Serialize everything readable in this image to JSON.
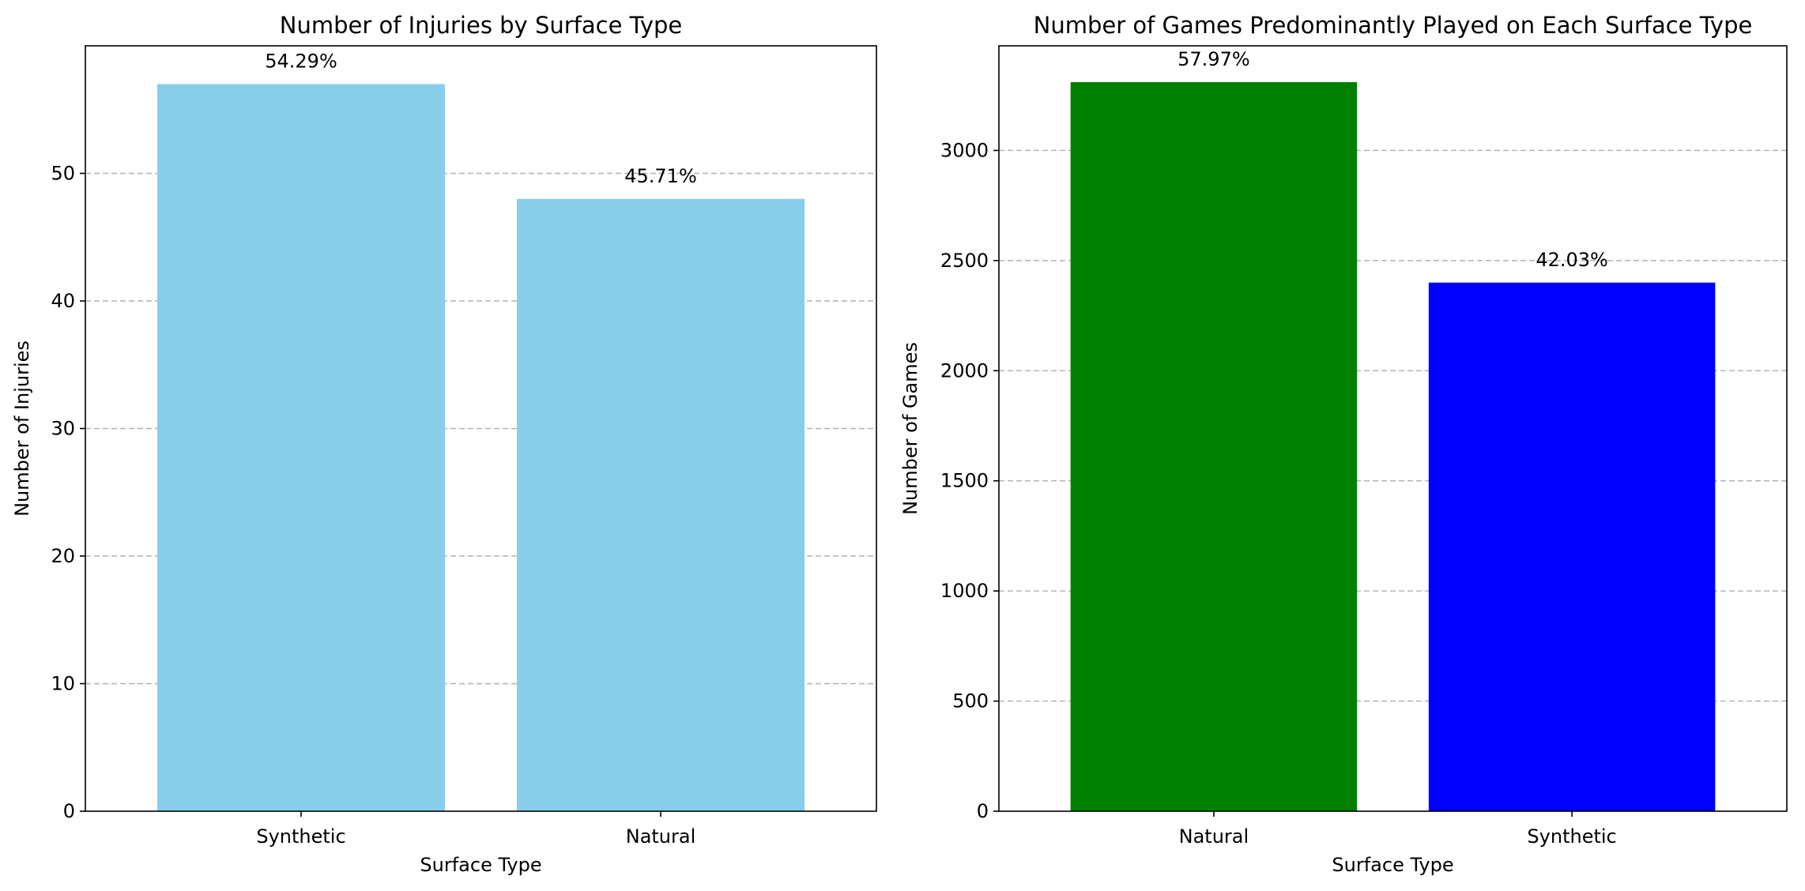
{
  "chart_data": [
    {
      "type": "bar",
      "title": "Number of Injuries by Surface Type",
      "xlabel": "Surface Type",
      "ylabel": "Number of Injuries",
      "categories": [
        "Synthetic",
        "Natural"
      ],
      "values": [
        57,
        48
      ],
      "data_labels": [
        "54.29%",
        "45.71%"
      ],
      "colors": [
        "#87ceeb",
        "#87ceeb"
      ],
      "ylim": [
        0,
        60
      ],
      "yticks": [
        0,
        10,
        20,
        30,
        40,
        50
      ],
      "grid": "y-dashed"
    },
    {
      "type": "bar",
      "title": "Number of Games Predominantly Played on Each Surface Type",
      "xlabel": "Surface Type",
      "ylabel": "Number of Games",
      "categories": [
        "Natural",
        "Synthetic"
      ],
      "values": [
        3310,
        2400
      ],
      "data_labels": [
        "57.97%",
        "42.03%"
      ],
      "colors": [
        "#008000",
        "#0000ff"
      ],
      "ylim": [
        0,
        3475
      ],
      "yticks": [
        0,
        500,
        1000,
        1500,
        2000,
        2500,
        3000
      ],
      "grid": "y-dashed"
    }
  ]
}
